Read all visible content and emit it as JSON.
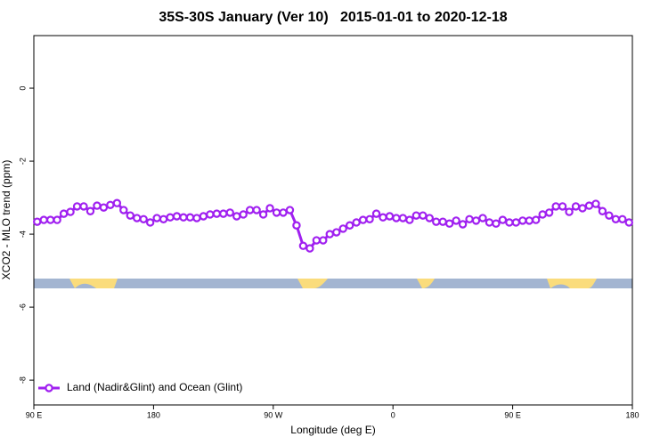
{
  "chart_data": {
    "type": "line",
    "title": "35S-30S January (Ver 10)   2015-01-01 to 2020-12-18",
    "x_label": "Longitude (deg E)",
    "y_label": "XCO2 - MLO trend (ppm)",
    "xlim": [
      90,
      540
    ],
    "ylim": [
      -8.68,
      1.44
    ],
    "xticks": [
      {
        "value": 90,
        "label": "90 E"
      },
      180,
      {
        "value": 270,
        "label": "90 W"
      },
      {
        "value": 360,
        "label": "0"
      },
      {
        "value": 450,
        "label": "90 E"
      },
      {
        "value": 540,
        "label": "180"
      }
    ],
    "yticks": [
      0,
      -2,
      -4,
      -6,
      -8
    ],
    "legend": "bottom-left",
    "x": [
      92.5,
      97.5,
      102.5,
      107.5,
      112.5,
      117.5,
      122.5,
      127.5,
      132.5,
      137.5,
      142.5,
      147.5,
      152.5,
      157.5,
      162.5,
      167.5,
      172.5,
      177.5,
      182.5,
      187.5,
      192.5,
      197.5,
      202.5,
      207.5,
      212.5,
      217.5,
      222.5,
      227.5,
      232.5,
      237.5,
      242.5,
      247.5,
      252.5,
      257.5,
      262.5,
      267.5,
      272.5,
      277.5,
      282.5,
      287.5,
      292.5,
      297.5,
      302.5,
      307.5,
      312.5,
      317.5,
      322.5,
      327.5,
      332.5,
      337.5,
      342.5,
      347.5,
      352.5,
      357.5,
      362.5,
      367.5,
      372.5,
      377.5,
      382.5,
      387.5,
      392.5,
      397.5,
      402.5,
      407.5,
      412.5,
      417.5,
      422.5,
      427.5,
      432.5,
      437.5,
      442.5,
      447.5,
      452.5,
      457.5,
      462.5,
      467.5,
      472.5,
      477.5,
      482.5,
      487.5,
      492.5,
      497.5,
      502.5,
      507.5,
      512.5,
      517.5,
      522.5,
      527.5,
      532.5,
      537.5
    ],
    "series": [
      {
        "name": "Land (Nadir&Glint) and Ocean (Glint)",
        "color": "#a020f0",
        "values": [
          -3.66,
          -3.61,
          -3.61,
          -3.61,
          -3.44,
          -3.39,
          -3.24,
          -3.24,
          -3.37,
          -3.22,
          -3.27,
          -3.2,
          -3.15,
          -3.34,
          -3.49,
          -3.56,
          -3.59,
          -3.68,
          -3.56,
          -3.59,
          -3.54,
          -3.51,
          -3.54,
          -3.54,
          -3.56,
          -3.51,
          -3.46,
          -3.44,
          -3.44,
          -3.41,
          -3.51,
          -3.46,
          -3.34,
          -3.34,
          -3.46,
          -3.29,
          -3.41,
          -3.41,
          -3.34,
          -3.76,
          -4.32,
          -4.39,
          -4.17,
          -4.17,
          -4.0,
          -3.95,
          -3.85,
          -3.76,
          -3.68,
          -3.61,
          -3.59,
          -3.44,
          -3.54,
          -3.51,
          -3.56,
          -3.56,
          -3.61,
          -3.49,
          -3.49,
          -3.56,
          -3.66,
          -3.66,
          -3.71,
          -3.63,
          -3.73,
          -3.59,
          -3.63,
          -3.56,
          -3.68,
          -3.71,
          -3.61,
          -3.68,
          -3.68,
          -3.63,
          -3.63,
          -3.61,
          -3.46,
          -3.41,
          -3.24,
          -3.24,
          -3.39,
          -3.24,
          -3.29,
          -3.22,
          -3.17,
          -3.37,
          -3.49,
          -3.59,
          -3.59,
          -3.68
        ]
      }
    ]
  }
}
